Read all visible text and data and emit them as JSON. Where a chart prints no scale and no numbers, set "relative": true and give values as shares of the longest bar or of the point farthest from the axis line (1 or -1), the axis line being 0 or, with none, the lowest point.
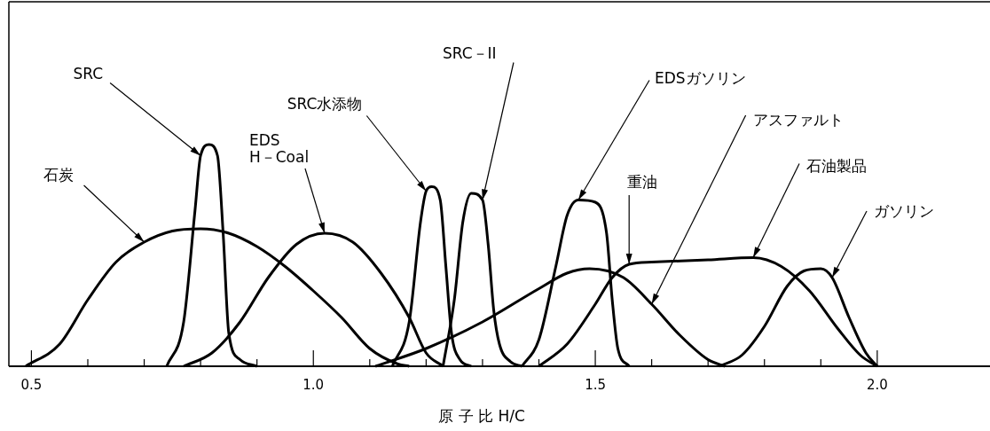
{
  "chart_data": {
    "type": "line",
    "relative": true,
    "xlabel": "原 子 比 H/C",
    "xlim": [
      0.46,
      2.2
    ],
    "xticks": [
      0.5,
      {
        "value": 0.6,
        "label": null
      },
      {
        "value": 0.7,
        "label": null
      },
      {
        "value": 0.8,
        "label": null
      },
      {
        "value": 0.9,
        "label": null
      },
      {
        "value": 1.0,
        "label": "1.0"
      },
      {
        "value": 1.1,
        "label": null
      },
      {
        "value": 1.2,
        "label": null
      },
      {
        "value": 1.3,
        "label": null
      },
      {
        "value": 1.4,
        "label": null
      },
      1.5,
      {
        "value": 1.6,
        "label": null
      },
      {
        "value": 1.7,
        "label": null
      },
      {
        "value": 1.8,
        "label": null
      },
      {
        "value": 1.9,
        "label": null
      },
      {
        "value": 2.0,
        "label": "2.0"
      }
    ],
    "series": [
      {
        "color": "#000000",
        "x": [
          0.49,
          0.55,
          0.6,
          0.65,
          0.7,
          0.75,
          0.8,
          0.85,
          0.9,
          0.95,
          1.0,
          1.05,
          1.1,
          1.15,
          1.17
        ],
        "values": [
          0,
          0.1,
          0.3,
          0.47,
          0.56,
          0.61,
          0.62,
          0.6,
          0.54,
          0.45,
          0.34,
          0.22,
          0.08,
          0.01,
          0
        ]
      },
      {
        "color": "#000000",
        "x": [
          0.74,
          0.77,
          0.79,
          0.8,
          0.815,
          0.83,
          0.84,
          0.85,
          0.87,
          0.9
        ],
        "values": [
          0,
          0.2,
          0.7,
          0.95,
          1,
          0.95,
          0.6,
          0.15,
          0.03,
          0
        ]
      },
      {
        "color": "#000000",
        "x": [
          0.77,
          0.82,
          0.87,
          0.92,
          0.97,
          1.02,
          1.07,
          1.12,
          1.17,
          1.2,
          1.23
        ],
        "values": [
          0,
          0.06,
          0.2,
          0.4,
          0.55,
          0.6,
          0.56,
          0.42,
          0.22,
          0.06,
          0
        ]
      },
      {
        "color": "#000000",
        "x": [
          1.14,
          1.17,
          1.19,
          1.2,
          1.21,
          1.225,
          1.235,
          1.245,
          1.26,
          1.28
        ],
        "values": [
          0,
          0.2,
          0.65,
          0.79,
          0.81,
          0.75,
          0.45,
          0.15,
          0.03,
          0
        ]
      },
      {
        "color": "#000000",
        "x": [
          1.23,
          1.25,
          1.265,
          1.28,
          1.3,
          1.31,
          1.32,
          1.33,
          1.35,
          1.37
        ],
        "values": [
          0,
          0.3,
          0.65,
          0.78,
          0.75,
          0.55,
          0.25,
          0.1,
          0.02,
          0
        ]
      },
      {
        "color": "#000000",
        "x": [
          1.37,
          1.4,
          1.43,
          1.45,
          1.47,
          1.5,
          1.52,
          1.53,
          1.54,
          1.56
        ],
        "values": [
          0,
          0.12,
          0.45,
          0.68,
          0.75,
          0.74,
          0.6,
          0.3,
          0.08,
          0
        ]
      },
      {
        "color": "#000000",
        "x": [
          1.11,
          1.2,
          1.3,
          1.4,
          1.45,
          1.49,
          1.55,
          1.6,
          1.65,
          1.7,
          1.73
        ],
        "values": [
          0,
          0.08,
          0.2,
          0.35,
          0.42,
          0.44,
          0.4,
          0.28,
          0.14,
          0.03,
          0
        ]
      },
      {
        "color": "#000000",
        "x": [
          1.4,
          1.45,
          1.5,
          1.53,
          1.56,
          1.6,
          1.7,
          1.78,
          1.83,
          1.88,
          1.93,
          1.97,
          2.0
        ],
        "values": [
          0,
          0.1,
          0.28,
          0.4,
          0.46,
          0.47,
          0.48,
          0.49,
          0.45,
          0.34,
          0.17,
          0.05,
          0
        ]
      },
      {
        "color": "#000000",
        "x": [
          1.72,
          1.76,
          1.8,
          1.84,
          1.87,
          1.9,
          1.92,
          1.95,
          1.98,
          2.0
        ],
        "values": [
          0,
          0.05,
          0.18,
          0.36,
          0.43,
          0.44,
          0.4,
          0.22,
          0.06,
          0
        ]
      }
    ],
    "annotations": [
      {
        "text": "石炭",
        "x": 0.7,
        "y": 0.56
      },
      {
        "text": "SRC",
        "x": 0.8,
        "y": 0.95
      },
      {
        "text": "EDS\nH－Coal",
        "x": 1.02,
        "y": 0.6
      },
      {
        "text": "SRC水添物",
        "x": 1.2,
        "y": 0.79
      },
      {
        "text": "SRC－II",
        "x": 1.3,
        "y": 0.75
      },
      {
        "text": "EDSガソリン",
        "x": 1.47,
        "y": 0.75
      },
      {
        "text": "重油",
        "x": 1.56,
        "y": 0.46
      },
      {
        "text": "アスファルト",
        "x": 1.6,
        "y": 0.28
      },
      {
        "text": "石油製品",
        "x": 1.78,
        "y": 0.49
      },
      {
        "text": "ガソリン",
        "x": 1.92,
        "y": 0.4
      }
    ]
  }
}
